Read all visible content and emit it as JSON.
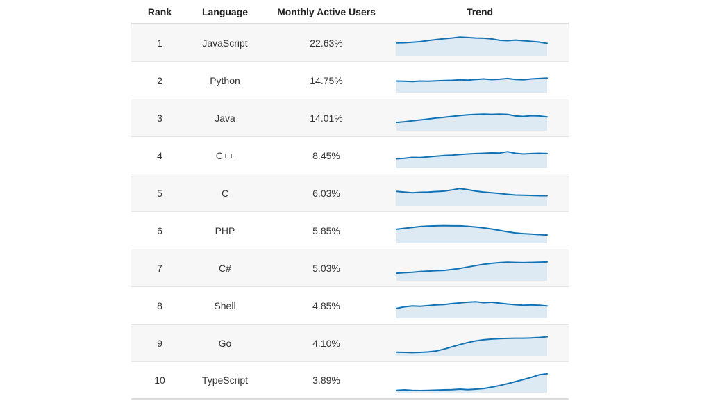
{
  "colors": {
    "sparkline_line": "#1173b5",
    "sparkline_fill": "#dde9f3",
    "row_alt_background": "#f7f7f7",
    "row_border": "#e4e4e4",
    "header_text": "#222222",
    "cell_text": "#333333"
  },
  "chart_data": {
    "type": "table",
    "title": "",
    "columns": [
      "Rank",
      "Language",
      "Monthly Active Users",
      "Trend"
    ],
    "sparkline": {
      "type": "area",
      "x_axis": "time (unlabeled)",
      "value_range": [
        0,
        1
      ],
      "note": "trend values normalized 0-1, estimated from sparkline pixel heights"
    },
    "rows": [
      {
        "rank": "1",
        "language": "JavaScript",
        "monthly_active_users": "22.63%",
        "trend": [
          0.52,
          0.53,
          0.55,
          0.58,
          0.63,
          0.67,
          0.71,
          0.74,
          0.78,
          0.76,
          0.74,
          0.73,
          0.7,
          0.64,
          0.62,
          0.65,
          0.62,
          0.59,
          0.56,
          0.5
        ]
      },
      {
        "rank": "2",
        "language": "Python",
        "monthly_active_users": "14.75%",
        "trend": [
          0.5,
          0.49,
          0.48,
          0.5,
          0.49,
          0.51,
          0.52,
          0.53,
          0.55,
          0.54,
          0.57,
          0.59,
          0.56,
          0.58,
          0.61,
          0.57,
          0.55,
          0.59,
          0.61,
          0.63
        ]
      },
      {
        "rank": "3",
        "language": "Java",
        "monthly_active_users": "14.01%",
        "trend": [
          0.33,
          0.36,
          0.4,
          0.44,
          0.48,
          0.52,
          0.55,
          0.59,
          0.63,
          0.66,
          0.68,
          0.69,
          0.68,
          0.69,
          0.68,
          0.61,
          0.59,
          0.62,
          0.61,
          0.57
        ]
      },
      {
        "rank": "4",
        "language": "C++",
        "monthly_active_users": "8.45%",
        "trend": [
          0.38,
          0.4,
          0.44,
          0.43,
          0.46,
          0.49,
          0.52,
          0.54,
          0.57,
          0.59,
          0.61,
          0.62,
          0.64,
          0.63,
          0.69,
          0.62,
          0.59,
          0.61,
          0.62,
          0.61
        ]
      },
      {
        "rank": "5",
        "language": "C",
        "monthly_active_users": "6.03%",
        "trend": [
          0.6,
          0.57,
          0.54,
          0.56,
          0.57,
          0.59,
          0.61,
          0.66,
          0.72,
          0.67,
          0.61,
          0.57,
          0.54,
          0.51,
          0.47,
          0.44,
          0.43,
          0.42,
          0.41,
          0.41
        ]
      },
      {
        "rank": "6",
        "language": "PHP",
        "monthly_active_users": "5.85%",
        "trend": [
          0.58,
          0.62,
          0.66,
          0.7,
          0.72,
          0.73,
          0.74,
          0.73,
          0.73,
          0.71,
          0.68,
          0.64,
          0.59,
          0.53,
          0.47,
          0.42,
          0.39,
          0.37,
          0.35,
          0.33
        ]
      },
      {
        "rank": "7",
        "language": "C#",
        "monthly_active_users": "5.03%",
        "trend": [
          0.3,
          0.32,
          0.34,
          0.37,
          0.39,
          0.41,
          0.42,
          0.46,
          0.51,
          0.57,
          0.63,
          0.69,
          0.73,
          0.76,
          0.78,
          0.77,
          0.76,
          0.77,
          0.78,
          0.79
        ]
      },
      {
        "rank": "8",
        "language": "Shell",
        "monthly_active_users": "4.85%",
        "trend": [
          0.4,
          0.47,
          0.51,
          0.49,
          0.52,
          0.55,
          0.57,
          0.61,
          0.64,
          0.67,
          0.69,
          0.65,
          0.67,
          0.63,
          0.59,
          0.56,
          0.54,
          0.55,
          0.54,
          0.51
        ]
      },
      {
        "rank": "9",
        "language": "Go",
        "monthly_active_users": "4.10%",
        "trend": [
          0.13,
          0.12,
          0.11,
          0.12,
          0.14,
          0.18,
          0.26,
          0.36,
          0.46,
          0.55,
          0.62,
          0.67,
          0.7,
          0.72,
          0.73,
          0.74,
          0.74,
          0.75,
          0.77,
          0.8
        ]
      },
      {
        "rank": "10",
        "language": "TypeScript",
        "monthly_active_users": "3.89%",
        "trend": [
          0.07,
          0.09,
          0.07,
          0.06,
          0.07,
          0.08,
          0.09,
          0.1,
          0.12,
          0.1,
          0.12,
          0.15,
          0.21,
          0.28,
          0.36,
          0.45,
          0.54,
          0.64,
          0.75,
          0.79
        ]
      }
    ]
  }
}
